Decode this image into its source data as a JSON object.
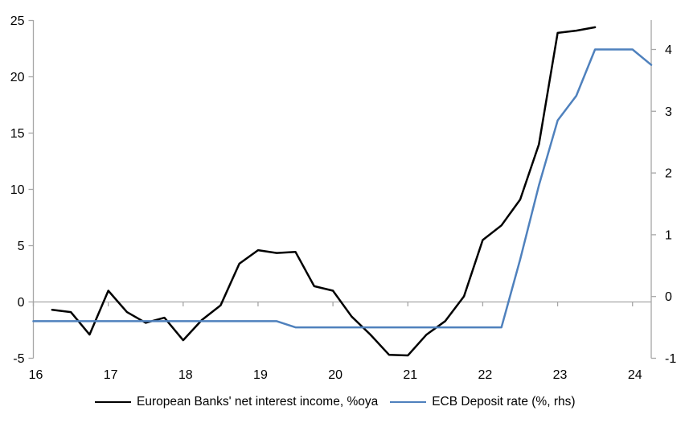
{
  "chart_data": {
    "type": "line",
    "title": "",
    "x_axis": {
      "tick_labels": [
        "16",
        "17",
        "18",
        "19",
        "20",
        "21",
        "22",
        "23",
        "24"
      ],
      "tick_values": [
        16,
        17,
        18,
        19,
        20,
        21,
        22,
        23,
        24
      ],
      "range": [
        16,
        24.25
      ]
    },
    "y_axis_left": {
      "tick_labels": [
        "-5",
        "0",
        "5",
        "10",
        "15",
        "20",
        "25"
      ],
      "tick_values": [
        -5,
        0,
        5,
        10,
        15,
        20,
        25
      ],
      "range": [
        -5,
        25
      ]
    },
    "y_axis_right": {
      "tick_labels": [
        "-1",
        "0",
        "1",
        "2",
        "3",
        "4"
      ],
      "tick_values": [
        -1,
        0,
        1,
        2,
        3,
        4
      ],
      "range": [
        -1,
        4.46
      ]
    },
    "grid": "zero-line-only",
    "legend_position": "bottom",
    "axis_color": "#a6a6a6",
    "text_color": "#000000",
    "background_color": "#ffffff",
    "series": [
      {
        "name": "European Banks' net interest income, %oya",
        "axis": "left",
        "color": "#000000",
        "x": [
          16.25,
          16.5,
          16.75,
          17,
          17.25,
          17.5,
          17.75,
          18,
          18.25,
          18.5,
          18.75,
          19,
          19.25,
          19.5,
          19.75,
          20,
          20.25,
          20.5,
          20.75,
          21,
          21.25,
          21.5,
          21.75,
          22,
          22.25,
          22.5,
          22.75,
          23,
          23.25,
          23.5
        ],
        "values": [
          -0.7,
          -0.9,
          -2.9,
          1.0,
          -0.9,
          -1.85,
          -1.4,
          -3.4,
          -1.6,
          -0.3,
          3.4,
          4.6,
          4.35,
          4.45,
          1.4,
          1.0,
          -1.3,
          -2.9,
          -4.7,
          -4.75,
          -2.9,
          -1.7,
          0.5,
          5.5,
          6.8,
          9.1,
          14.0,
          23.9,
          24.1,
          24.4
        ]
      },
      {
        "name": "ECB Deposit rate (%, rhs)",
        "axis": "right",
        "color": "#4f81bd",
        "x": [
          16,
          16.25,
          16.5,
          16.75,
          17,
          17.25,
          17.5,
          17.75,
          18,
          18.25,
          18.5,
          18.75,
          19,
          19.25,
          19.5,
          19.75,
          20,
          20.25,
          20.5,
          20.75,
          21,
          21.25,
          21.5,
          21.75,
          22,
          22.25,
          22.5,
          22.75,
          23,
          23.25,
          23.5,
          23.75,
          24,
          24.25
        ],
        "values": [
          -0.4,
          -0.4,
          -0.4,
          -0.4,
          -0.4,
          -0.4,
          -0.4,
          -0.4,
          -0.4,
          -0.4,
          -0.4,
          -0.4,
          -0.4,
          -0.4,
          -0.5,
          -0.5,
          -0.5,
          -0.5,
          -0.5,
          -0.5,
          -0.5,
          -0.5,
          -0.5,
          -0.5,
          -0.5,
          -0.5,
          0.6,
          1.8,
          2.85,
          3.25,
          4.0,
          4.0,
          4.0,
          3.75
        ]
      }
    ]
  }
}
